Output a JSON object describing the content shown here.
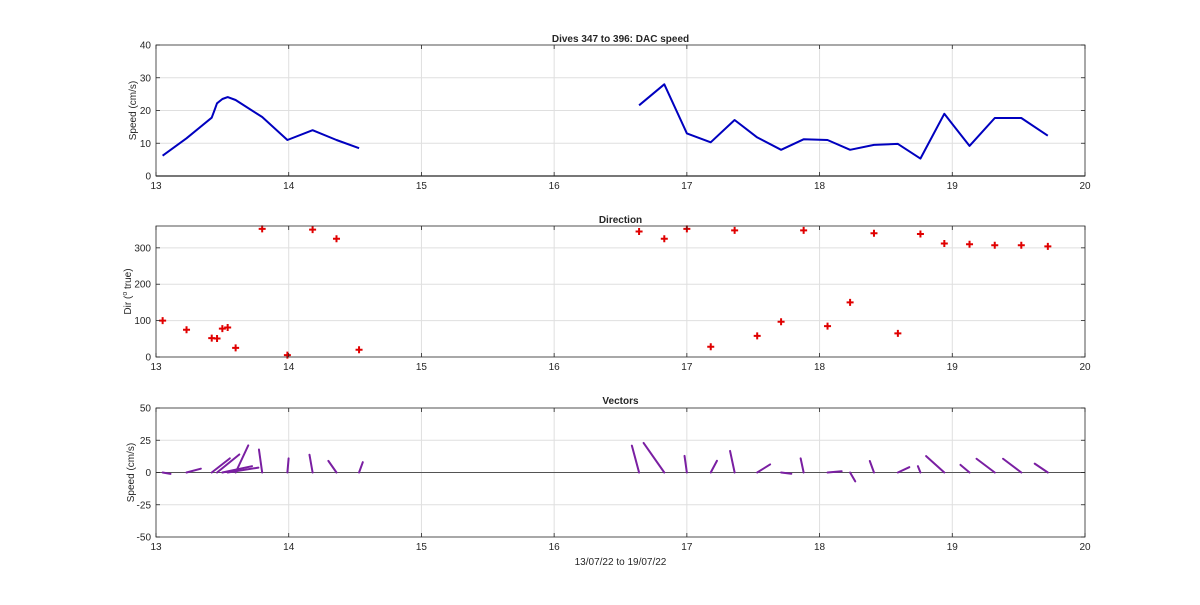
{
  "chart_data": [
    {
      "type": "line",
      "title": "Dives 347 to 396: DAC speed",
      "xlabel": "",
      "ylabel": "Speed (cm/s)",
      "xlim": [
        13,
        20
      ],
      "ylim": [
        0,
        40
      ],
      "xticks": [
        13,
        14,
        15,
        16,
        17,
        18,
        19,
        20
      ],
      "yticks": [
        0,
        10,
        20,
        30,
        40
      ],
      "grid": true,
      "colors": {
        "line": "#0000bf"
      },
      "series": [
        {
          "segments": [
            [
              [
                13.05,
                6.2
              ],
              [
                13.23,
                11.5
              ],
              [
                13.42,
                17.8
              ],
              [
                13.44,
                20.0
              ],
              [
                13.46,
                22.2
              ],
              [
                13.5,
                23.5
              ],
              [
                13.54,
                24.1
              ],
              [
                13.6,
                23.2
              ],
              [
                13.8,
                18.0
              ],
              [
                13.99,
                11.0
              ],
              [
                14.18,
                14.0
              ],
              [
                14.36,
                11.0
              ],
              [
                14.53,
                8.5
              ]
            ],
            [
              [
                16.64,
                21.6
              ],
              [
                16.83,
                28.0
              ],
              [
                17.0,
                13.0
              ],
              [
                17.18,
                10.3
              ],
              [
                17.36,
                17.1
              ],
              [
                17.53,
                11.8
              ],
              [
                17.71,
                8.0
              ],
              [
                17.88,
                11.2
              ],
              [
                18.06,
                11.0
              ],
              [
                18.23,
                8.0
              ],
              [
                18.41,
                9.5
              ],
              [
                18.59,
                9.8
              ],
              [
                18.76,
                5.3
              ],
              [
                18.94,
                19.0
              ],
              [
                19.13,
                9.2
              ],
              [
                19.32,
                17.7
              ],
              [
                19.52,
                17.7
              ],
              [
                19.72,
                12.3
              ]
            ]
          ]
        }
      ]
    },
    {
      "type": "scatter",
      "title": "Direction",
      "xlabel": "",
      "ylabel_pre": "Dir (",
      "ylabel_sup": "o",
      "ylabel_post": " true)",
      "xlim": [
        13,
        20
      ],
      "ylim": [
        0,
        360
      ],
      "xticks": [
        13,
        14,
        15,
        16,
        17,
        18,
        19,
        20
      ],
      "yticks": [
        0,
        100,
        200,
        300
      ],
      "grid": true,
      "colors": {
        "marker": "#e00000"
      },
      "x": [
        13.05,
        13.23,
        13.42,
        13.46,
        13.5,
        13.54,
        13.6,
        13.8,
        13.99,
        14.18,
        14.36,
        14.53,
        16.64,
        16.83,
        17.0,
        17.18,
        17.36,
        17.53,
        17.71,
        17.88,
        18.06,
        18.23,
        18.41,
        18.59,
        18.76,
        18.94,
        19.13,
        19.32,
        19.52,
        19.72
      ],
      "y": [
        100,
        75,
        52,
        51,
        78,
        81,
        25,
        352,
        5,
        350,
        325,
        20,
        345,
        325,
        352,
        28,
        348,
        58,
        97,
        348,
        85,
        150,
        340,
        65,
        338,
        312,
        310,
        307,
        307,
        304
      ]
    },
    {
      "type": "line",
      "subtype": "vector",
      "title": "Vectors",
      "xlabel": "13/07/22 to 19/07/22",
      "ylabel": "Speed (cm/s)",
      "xlim": [
        13,
        20
      ],
      "ylim": [
        -50,
        50
      ],
      "xticks": [
        13,
        14,
        15,
        16,
        17,
        18,
        19,
        20
      ],
      "yticks": [
        -50,
        -25,
        0,
        25,
        50
      ],
      "ytick_labels": [
        "-50",
        "-25",
        "0",
        "25",
        "50"
      ],
      "grid": true,
      "colors": {
        "vector": "#7a1fa2",
        "zero_line": "#262626"
      },
      "vectors": [
        {
          "x": 13.05,
          "speed": 6.2,
          "dir": 100
        },
        {
          "x": 13.23,
          "speed": 11.5,
          "dir": 75
        },
        {
          "x": 13.42,
          "speed": 17.8,
          "dir": 52
        },
        {
          "x": 13.46,
          "speed": 22.2,
          "dir": 51
        },
        {
          "x": 13.5,
          "speed": 23.5,
          "dir": 78
        },
        {
          "x": 13.54,
          "speed": 24.1,
          "dir": 81
        },
        {
          "x": 13.6,
          "speed": 23.2,
          "dir": 25
        },
        {
          "x": 13.8,
          "speed": 18.0,
          "dir": 352
        },
        {
          "x": 13.99,
          "speed": 11.0,
          "dir": 5
        },
        {
          "x": 14.18,
          "speed": 14.0,
          "dir": 350
        },
        {
          "x": 14.36,
          "speed": 11.0,
          "dir": 325
        },
        {
          "x": 14.53,
          "speed": 8.5,
          "dir": 20
        },
        {
          "x": 16.64,
          "speed": 21.6,
          "dir": 345
        },
        {
          "x": 16.83,
          "speed": 28.0,
          "dir": 325
        },
        {
          "x": 17.0,
          "speed": 13.0,
          "dir": 352
        },
        {
          "x": 17.18,
          "speed": 10.3,
          "dir": 28
        },
        {
          "x": 17.36,
          "speed": 17.1,
          "dir": 348
        },
        {
          "x": 17.53,
          "speed": 11.8,
          "dir": 58
        },
        {
          "x": 17.71,
          "speed": 8.0,
          "dir": 97
        },
        {
          "x": 17.88,
          "speed": 11.2,
          "dir": 348
        },
        {
          "x": 18.06,
          "speed": 11.0,
          "dir": 85
        },
        {
          "x": 18.23,
          "speed": 8.0,
          "dir": 150
        },
        {
          "x": 18.41,
          "speed": 9.5,
          "dir": 340
        },
        {
          "x": 18.59,
          "speed": 9.8,
          "dir": 65
        },
        {
          "x": 18.76,
          "speed": 5.3,
          "dir": 338
        },
        {
          "x": 18.94,
          "speed": 19.0,
          "dir": 312
        },
        {
          "x": 19.13,
          "speed": 9.2,
          "dir": 310
        },
        {
          "x": 19.32,
          "speed": 17.7,
          "dir": 307
        },
        {
          "x": 19.52,
          "speed": 17.7,
          "dir": 307
        },
        {
          "x": 19.72,
          "speed": 12.3,
          "dir": 304
        }
      ]
    }
  ]
}
